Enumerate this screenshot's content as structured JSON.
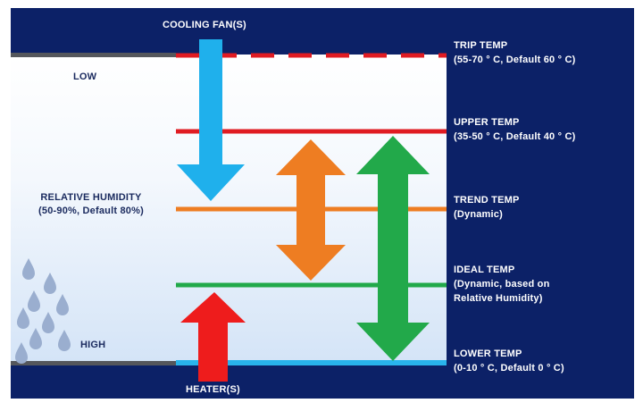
{
  "top_label": "COOLING FAN(S)",
  "bottom_label": "HEATER(S)",
  "humidity": {
    "low": "LOW",
    "high": "HIGH",
    "title": "RELATIVE HUMIDITY",
    "range": "(50-90%, Default 80%)"
  },
  "levels": [
    {
      "name": "TRIP TEMP",
      "detail": "(55-70 ° C, Default 60 ° C)",
      "detail2": "",
      "color": "#e01b22",
      "style": "dashed"
    },
    {
      "name": "UPPER TEMP",
      "detail": "(35-50 ° C, Default 40 ° C)",
      "detail2": "",
      "color": "#e01b22",
      "style": "solid"
    },
    {
      "name": "TREND TEMP",
      "detail": "(Dynamic)",
      "detail2": "",
      "color": "#ee7d22",
      "style": "solid"
    },
    {
      "name": "IDEAL TEMP",
      "detail": "(Dynamic, based on",
      "detail2": "Relative Humidity)",
      "color": "#22a94a",
      "style": "solid"
    },
    {
      "name": "LOWER TEMP",
      "detail": "(0-10 ° C, Default 0 ° C)",
      "detail2": "",
      "color": "#29b4ec",
      "style": "solid"
    }
  ],
  "colors": {
    "background": "#0c2167",
    "cooling_arrow": "#1fb0ec",
    "heater_arrow": "#ee1c1c",
    "trend_arrow": "#ee7d22",
    "ideal_arrow": "#22a94a",
    "rain_drops": "#9aaecf",
    "panel_edge": "#55575c"
  },
  "icons": [
    "cooling-arrow-down",
    "heater-arrow-up",
    "trend-double-arrow",
    "ideal-double-arrow",
    "rain-drops"
  ]
}
